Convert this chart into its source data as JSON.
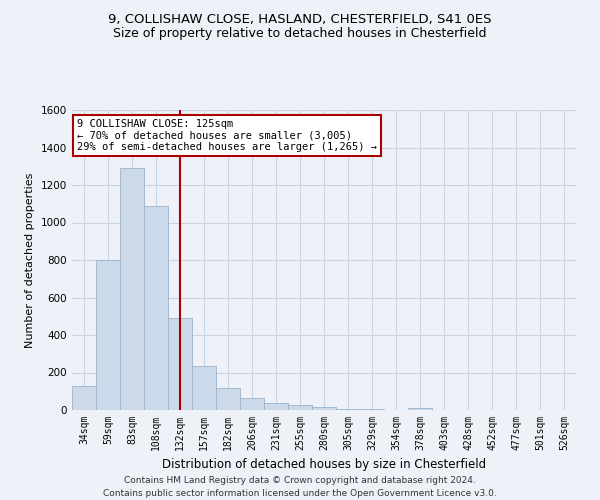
{
  "title_line1": "9, COLLISHAW CLOSE, HASLAND, CHESTERFIELD, S41 0ES",
  "title_line2": "Size of property relative to detached houses in Chesterfield",
  "xlabel": "Distribution of detached houses by size in Chesterfield",
  "ylabel": "Number of detached properties",
  "footnote": "Contains HM Land Registry data © Crown copyright and database right 2024.\nContains public sector information licensed under the Open Government Licence v3.0.",
  "bar_labels": [
    "34sqm",
    "59sqm",
    "83sqm",
    "108sqm",
    "132sqm",
    "157sqm",
    "182sqm",
    "206sqm",
    "231sqm",
    "255sqm",
    "280sqm",
    "305sqm",
    "329sqm",
    "354sqm",
    "378sqm",
    "403sqm",
    "428sqm",
    "452sqm",
    "477sqm",
    "501sqm",
    "526sqm"
  ],
  "bar_values": [
    130,
    800,
    1290,
    1090,
    490,
    235,
    120,
    65,
    35,
    25,
    15,
    8,
    3,
    1,
    10,
    1,
    0,
    0,
    0,
    0,
    0
  ],
  "bar_color": "#ccd9e8",
  "bar_edgecolor": "#9ab3cc",
  "vline_color": "#aa0000",
  "annotation_text": "9 COLLISHAW CLOSE: 125sqm\n← 70% of detached houses are smaller (3,005)\n29% of semi-detached houses are larger (1,265) →",
  "annotation_box_color": "#ffffff",
  "annotation_box_edgecolor": "#aa0000",
  "ylim": [
    0,
    1600
  ],
  "yticks": [
    0,
    200,
    400,
    600,
    800,
    1000,
    1200,
    1400,
    1600
  ],
  "grid_color": "#c8d4e4",
  "bg_color": "#eef2f8",
  "title1_fontsize": 9.5,
  "title2_fontsize": 9,
  "ylabel_fontsize": 8,
  "xlabel_fontsize": 8.5,
  "footnote_fontsize": 6.5
}
